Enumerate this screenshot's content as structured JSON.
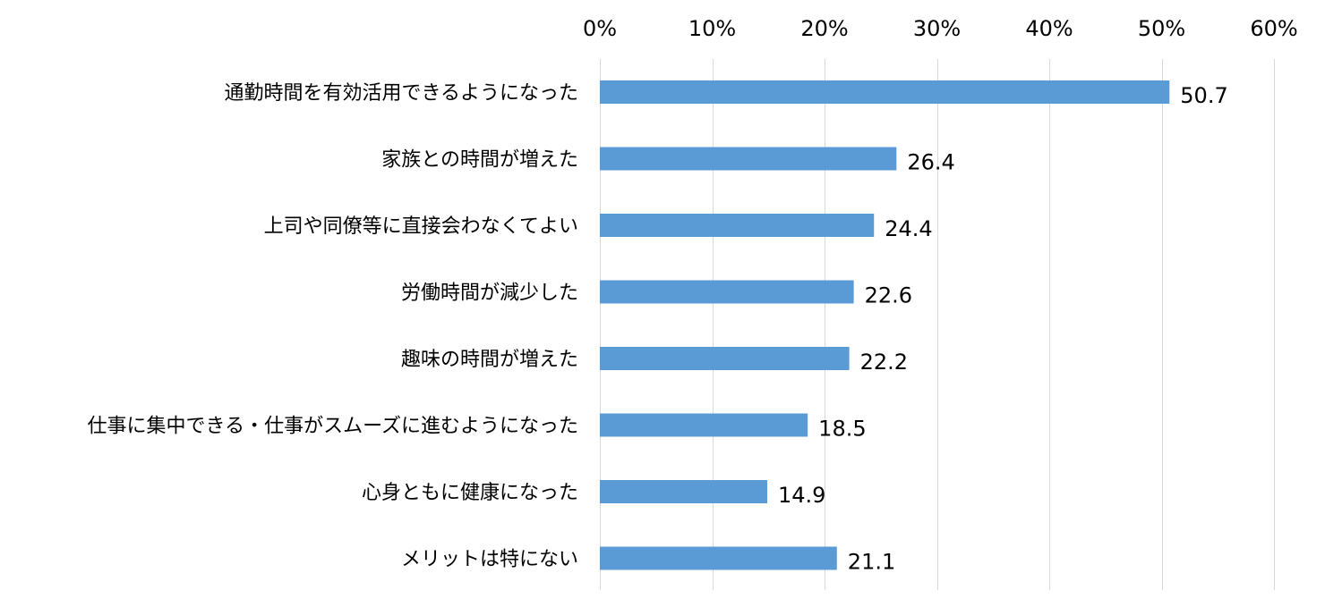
{
  "chart_data": {
    "type": "bar",
    "orientation": "horizontal",
    "categories": [
      "通勤時間を有効活用できるようになった",
      "家族との時間が増えた",
      "上司や同僚等に直接会わなくてよい",
      "労働時間が減少した",
      "趣味の時間が増えた",
      "仕事に集中できる・仕事がスムーズに進むようになった",
      "心身ともに健康になった",
      "メリットは特にない"
    ],
    "values": [
      50.7,
      26.4,
      24.4,
      22.6,
      22.2,
      18.5,
      14.9,
      21.1
    ],
    "data_labels": [
      "50.7",
      "26.4",
      "24.4",
      "22.6",
      "22.2",
      "18.5",
      "14.9",
      "21.1"
    ],
    "xlim": [
      0,
      60
    ],
    "x_ticks": [
      0,
      10,
      20,
      30,
      40,
      50,
      60
    ],
    "x_tick_labels": [
      "0%",
      "10%",
      "20%",
      "30%",
      "40%",
      "50%",
      "60%"
    ],
    "x_axis_position": "top",
    "grid": true,
    "legend": "none",
    "bar_color": "#5b9bd5",
    "grid_color": "#d9d9d9"
  }
}
